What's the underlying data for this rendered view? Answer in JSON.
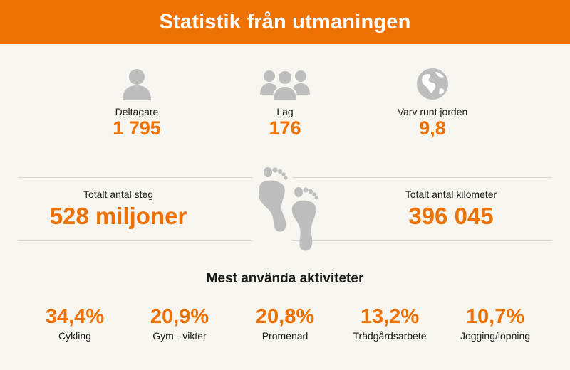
{
  "header": {
    "title": "Statistik från utmaningen"
  },
  "stats_top": [
    {
      "icon": "person-icon",
      "label": "Deltagare",
      "value": "1 795"
    },
    {
      "icon": "group-icon",
      "label": "Lag",
      "value": "176"
    },
    {
      "icon": "globe-icon",
      "label": "Varv runt jorden",
      "value": "9,8"
    }
  ],
  "stats_mid": [
    {
      "label": "Totalt antal steg",
      "value": "528 miljoner"
    },
    {
      "label": "Totalt antal kilometer",
      "value": "396 045"
    }
  ],
  "activities": {
    "title": "Mest använda aktiviteter",
    "items": [
      {
        "pct": "34,4%",
        "name": "Cykling"
      },
      {
        "pct": "20,9%",
        "name": "Gym - vikter"
      },
      {
        "pct": "20,8%",
        "name": "Promenad"
      },
      {
        "pct": "13,2%",
        "name": "Trädgårdsarbete"
      },
      {
        "pct": "10,7%",
        "name": "Jogging/löpning"
      }
    ]
  },
  "colors": {
    "accent": "#ee7103",
    "icon_gray": "#bdbdbd",
    "background": "#f7f5ef"
  }
}
